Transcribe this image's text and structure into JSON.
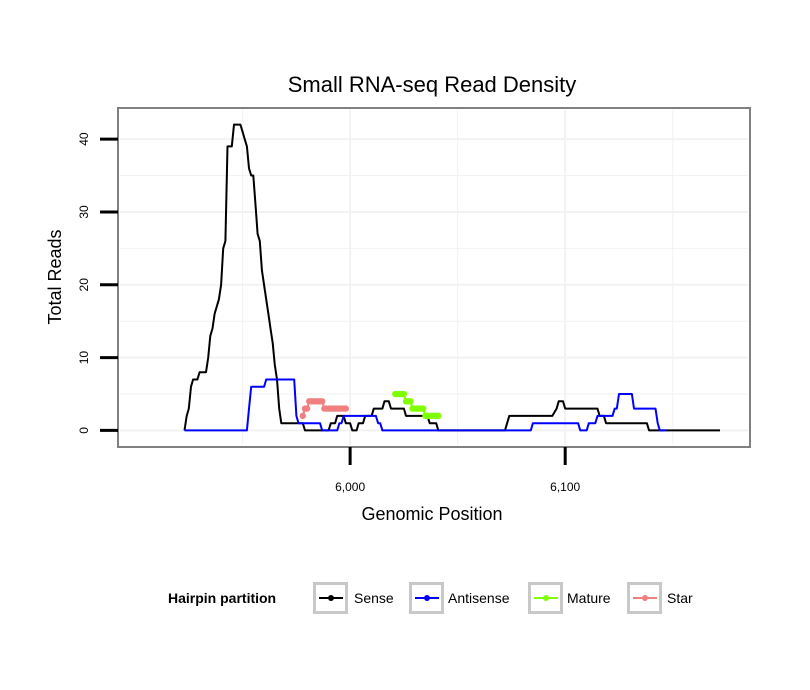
{
  "chart_data": {
    "type": "line",
    "title": "Small RNA-seq Read Density",
    "xlabel": "Genomic Position",
    "ylabel": "Total Reads",
    "xlim": [
      5893,
      6185
    ],
    "ylim": [
      -2,
      44
    ],
    "x_ticks": [
      6000,
      6100
    ],
    "x_tick_labels": [
      "6,000",
      "6,100"
    ],
    "y_ticks": [
      0,
      10,
      20,
      30,
      40
    ],
    "y_tick_labels": [
      "0",
      "10",
      "20",
      "30",
      "40"
    ],
    "legend_title": "Hairpin partition",
    "legend_position": "bottom",
    "series": [
      {
        "name": "Sense",
        "color": "#000000",
        "points": [
          [
            5923,
            0
          ],
          [
            5924,
            2
          ],
          [
            5925,
            3
          ],
          [
            5926,
            6
          ],
          [
            5927,
            7
          ],
          [
            5929,
            7
          ],
          [
            5930,
            8
          ],
          [
            5933,
            8
          ],
          [
            5934,
            10
          ],
          [
            5935,
            13
          ],
          [
            5936,
            14
          ],
          [
            5937,
            16
          ],
          [
            5939,
            18
          ],
          [
            5940,
            20
          ],
          [
            5941,
            25
          ],
          [
            5942,
            26
          ],
          [
            5943,
            39
          ],
          [
            5945,
            39
          ],
          [
            5946,
            42
          ],
          [
            5949,
            42
          ],
          [
            5950,
            41
          ],
          [
            5951,
            40
          ],
          [
            5952,
            39
          ],
          [
            5953,
            36
          ],
          [
            5954,
            35
          ],
          [
            5955,
            35
          ],
          [
            5956,
            31
          ],
          [
            5957,
            27
          ],
          [
            5958,
            26
          ],
          [
            5959,
            22
          ],
          [
            5961,
            18
          ],
          [
            5962,
            16
          ],
          [
            5963,
            14
          ],
          [
            5964,
            12
          ],
          [
            5965,
            9
          ],
          [
            5966,
            7
          ],
          [
            5967,
            3
          ],
          [
            5968,
            1
          ],
          [
            5978,
            1
          ],
          [
            5979,
            0
          ],
          [
            5990,
            0
          ],
          [
            5991,
            1
          ],
          [
            5993,
            1
          ],
          [
            5994,
            2
          ],
          [
            5997,
            2
          ],
          [
            5998,
            1
          ],
          [
            6000,
            1
          ],
          [
            6001,
            0
          ],
          [
            6003,
            0
          ],
          [
            6004,
            1
          ],
          [
            6006,
            1
          ],
          [
            6007,
            2
          ],
          [
            6010,
            2
          ],
          [
            6011,
            3
          ],
          [
            6015,
            3
          ],
          [
            6016,
            4
          ],
          [
            6018,
            4
          ],
          [
            6019,
            3
          ],
          [
            6025,
            3
          ],
          [
            6026,
            2
          ],
          [
            6036,
            2
          ],
          [
            6037,
            1
          ],
          [
            6040,
            1
          ],
          [
            6041,
            0
          ],
          [
            6072,
            0
          ],
          [
            6073,
            1
          ],
          [
            6074,
            2
          ],
          [
            6094,
            2
          ],
          [
            6096,
            3
          ],
          [
            6097,
            4
          ],
          [
            6099,
            4
          ],
          [
            6100,
            3
          ],
          [
            6115,
            3
          ],
          [
            6116,
            2
          ],
          [
            6118,
            2
          ],
          [
            6119,
            1
          ],
          [
            6138,
            1
          ],
          [
            6139,
            0
          ],
          [
            6172,
            0
          ]
        ]
      },
      {
        "name": "Antisense",
        "color": "#0000ff",
        "points": [
          [
            5923,
            0
          ],
          [
            5952,
            0
          ],
          [
            5953,
            3
          ],
          [
            5954,
            6
          ],
          [
            5960,
            6
          ],
          [
            5961,
            7
          ],
          [
            5974,
            7
          ],
          [
            5975,
            2
          ],
          [
            5976,
            1
          ],
          [
            5986,
            1
          ],
          [
            5987,
            0
          ],
          [
            5994,
            0
          ],
          [
            5995,
            1
          ],
          [
            5996,
            1
          ],
          [
            5997,
            2
          ],
          [
            6012,
            2
          ],
          [
            6013,
            1
          ],
          [
            6014,
            1
          ],
          [
            6015,
            0
          ],
          [
            6084,
            0
          ],
          [
            6085,
            1
          ],
          [
            6106,
            1
          ],
          [
            6107,
            0
          ],
          [
            6110,
            0
          ],
          [
            6111,
            1
          ],
          [
            6114,
            1
          ],
          [
            6115,
            2
          ],
          [
            6122,
            2
          ],
          [
            6123,
            3
          ],
          [
            6124,
            3
          ],
          [
            6125,
            5
          ],
          [
            6131,
            5
          ],
          [
            6132,
            3
          ],
          [
            6142,
            3
          ],
          [
            6143,
            1
          ],
          [
            6144,
            0
          ],
          [
            6147,
            0
          ]
        ]
      },
      {
        "name": "Mature",
        "color": "#7fff00",
        "points": [
          [
            6021,
            5
          ],
          [
            6022,
            5
          ],
          [
            6023,
            5
          ],
          [
            6024,
            5
          ],
          [
            6025,
            5
          ],
          [
            6026,
            4
          ],
          [
            6027,
            4
          ],
          [
            6028,
            4
          ],
          [
            6029,
            3
          ],
          [
            6030,
            3
          ],
          [
            6031,
            3
          ],
          [
            6032,
            3
          ],
          [
            6033,
            3
          ],
          [
            6034,
            3
          ],
          [
            6035,
            2
          ],
          [
            6036,
            2
          ],
          [
            6037,
            2
          ],
          [
            6038,
            2
          ],
          [
            6039,
            2
          ],
          [
            6040,
            2
          ],
          [
            6041,
            2
          ]
        ]
      },
      {
        "name": "Star",
        "color": "#f08080",
        "points": [
          [
            5978,
            2
          ],
          [
            5979,
            3
          ],
          [
            5980,
            3
          ],
          [
            5981,
            4
          ],
          [
            5982,
            4
          ],
          [
            5983,
            4
          ],
          [
            5984,
            4
          ],
          [
            5985,
            4
          ],
          [
            5986,
            4
          ],
          [
            5987,
            4
          ],
          [
            5988,
            3
          ],
          [
            5989,
            3
          ],
          [
            5990,
            3
          ],
          [
            5991,
            3
          ],
          [
            5992,
            3
          ],
          [
            5993,
            3
          ],
          [
            5994,
            3
          ],
          [
            5995,
            3
          ],
          [
            5996,
            3
          ],
          [
            5997,
            3
          ],
          [
            5998,
            3
          ]
        ]
      }
    ]
  }
}
